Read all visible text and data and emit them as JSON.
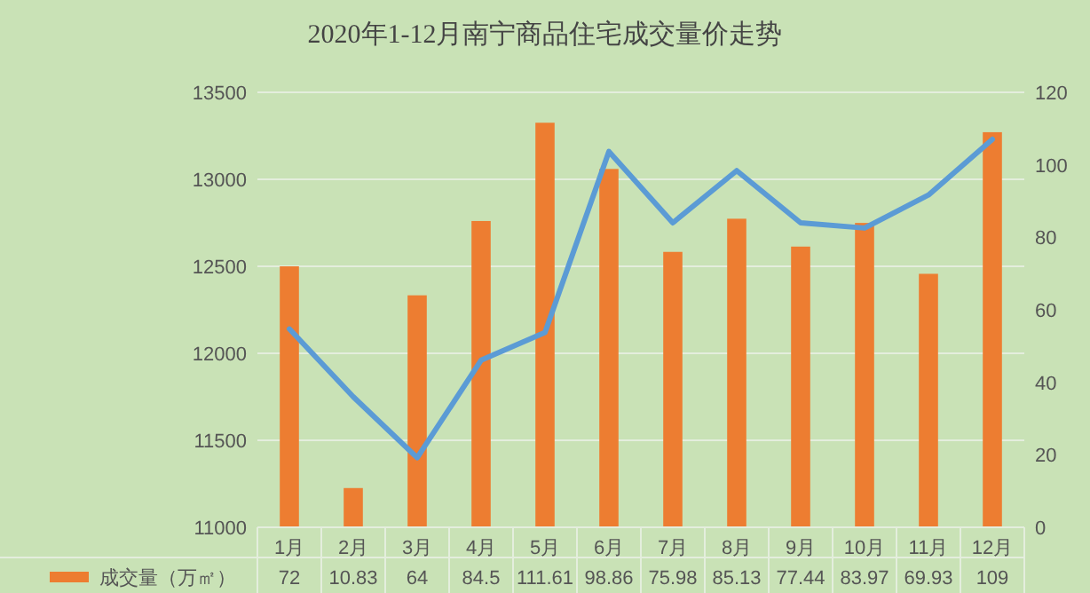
{
  "chart_data": {
    "type": "bar",
    "title": "2020年1-12月南宁商品住宅成交量价走势",
    "categories": [
      "1月",
      "2月",
      "3月",
      "4月",
      "5月",
      "6月",
      "7月",
      "8月",
      "9月",
      "10月",
      "11月",
      "12月"
    ],
    "series": [
      {
        "name": "成交量（万㎡）",
        "color": "#ed7d31",
        "axis": "y2",
        "values": [
          72,
          10.83,
          64,
          84.5,
          111.61,
          98.86,
          75.98,
          85.13,
          77.44,
          83.97,
          69.93,
          109
        ],
        "value_labels": [
          "72",
          "10.83",
          "64",
          "84.5",
          "111.61",
          "98.86",
          "75.98",
          "85.13",
          "77.44",
          "83.97",
          "69.93",
          "109"
        ]
      },
      {
        "type": "line",
        "color": "#5b9bd5",
        "values": [
          12140,
          11750,
          11400,
          11960,
          12120,
          13160,
          12750,
          13050,
          12750,
          12720,
          12910,
          13230
        ]
      }
    ],
    "ylim": [
      11000,
      13500
    ],
    "yticks": [
      11000,
      11500,
      12000,
      12500,
      13000,
      13500
    ],
    "y2lim": [
      0,
      120
    ],
    "y2ticks": [
      0,
      20,
      40,
      60,
      80,
      100,
      120
    ],
    "grid": "y",
    "legend": "bottom"
  }
}
